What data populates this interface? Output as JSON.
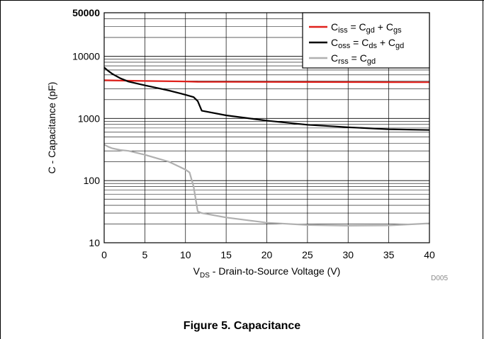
{
  "figure": {
    "caption": "Figure 5. Capacitance",
    "code": "D005"
  },
  "chart_data": {
    "type": "line",
    "xlabel_main": "V",
    "xlabel_sub": "DS",
    "xlabel_rest": " - Drain-to-Source Voltage (V)",
    "ylabel": "C - Capacitance (pF)",
    "xlim": [
      0,
      40
    ],
    "ylim": [
      10,
      50000
    ],
    "yscale": "log",
    "grid": true,
    "legend_position": "top-right",
    "xticks": [
      0,
      5,
      10,
      15,
      20,
      25,
      30,
      35,
      40
    ],
    "yticks": [
      10,
      100,
      1000,
      10000,
      50000
    ],
    "xtick_labels": [
      "0",
      "5",
      "10",
      "15",
      "20",
      "25",
      "30",
      "35",
      "40"
    ],
    "ytick_labels": [
      "10",
      "100",
      "1000",
      "10000",
      "50000"
    ],
    "series": [
      {
        "legend": [
          {
            "t": "C",
            "s": ""
          },
          {
            "t": "iss",
            "s": "sub"
          },
          {
            "t": " = C",
            "s": ""
          },
          {
            "t": "gd",
            "s": "sub"
          },
          {
            "t": " + C",
            "s": ""
          },
          {
            "t": "gs",
            "s": "sub"
          }
        ],
        "color": "#e0201b",
        "x": [
          0,
          2,
          5,
          10,
          11.5,
          15,
          20,
          25,
          30,
          35,
          40
        ],
        "y": [
          4100,
          4050,
          4000,
          3920,
          3870,
          3860,
          3850,
          3840,
          3830,
          3820,
          3810
        ]
      },
      {
        "legend": [
          {
            "t": "C",
            "s": ""
          },
          {
            "t": "oss",
            "s": "sub"
          },
          {
            "t": " = C",
            "s": ""
          },
          {
            "t": "ds",
            "s": "sub"
          },
          {
            "t": " + C",
            "s": ""
          },
          {
            "t": "gd",
            "s": "sub"
          }
        ],
        "color": "#000000",
        "x": [
          0,
          0.5,
          1,
          2,
          3,
          5,
          8,
          10,
          11,
          11.5,
          12,
          15,
          20,
          25,
          30,
          35,
          40
        ],
        "y": [
          6600,
          5800,
          5200,
          4400,
          3900,
          3400,
          2800,
          2400,
          2200,
          1900,
          1330,
          1120,
          920,
          790,
          720,
          670,
          650
        ]
      },
      {
        "legend": [
          {
            "t": "C",
            "s": ""
          },
          {
            "t": "rss",
            "s": "sub"
          },
          {
            "t": " = C",
            "s": ""
          },
          {
            "t": "gd",
            "s": "sub"
          }
        ],
        "color": "#b0b0b0",
        "x": [
          0,
          0.5,
          1,
          2,
          3,
          5,
          8,
          10,
          10.5,
          11,
          11.5,
          12,
          15,
          20,
          25,
          30,
          35,
          40
        ],
        "y": [
          380,
          350,
          330,
          310,
          300,
          260,
          200,
          150,
          135,
          80,
          32,
          30,
          25.5,
          21,
          19.3,
          18.8,
          19,
          20.5
        ]
      }
    ]
  }
}
